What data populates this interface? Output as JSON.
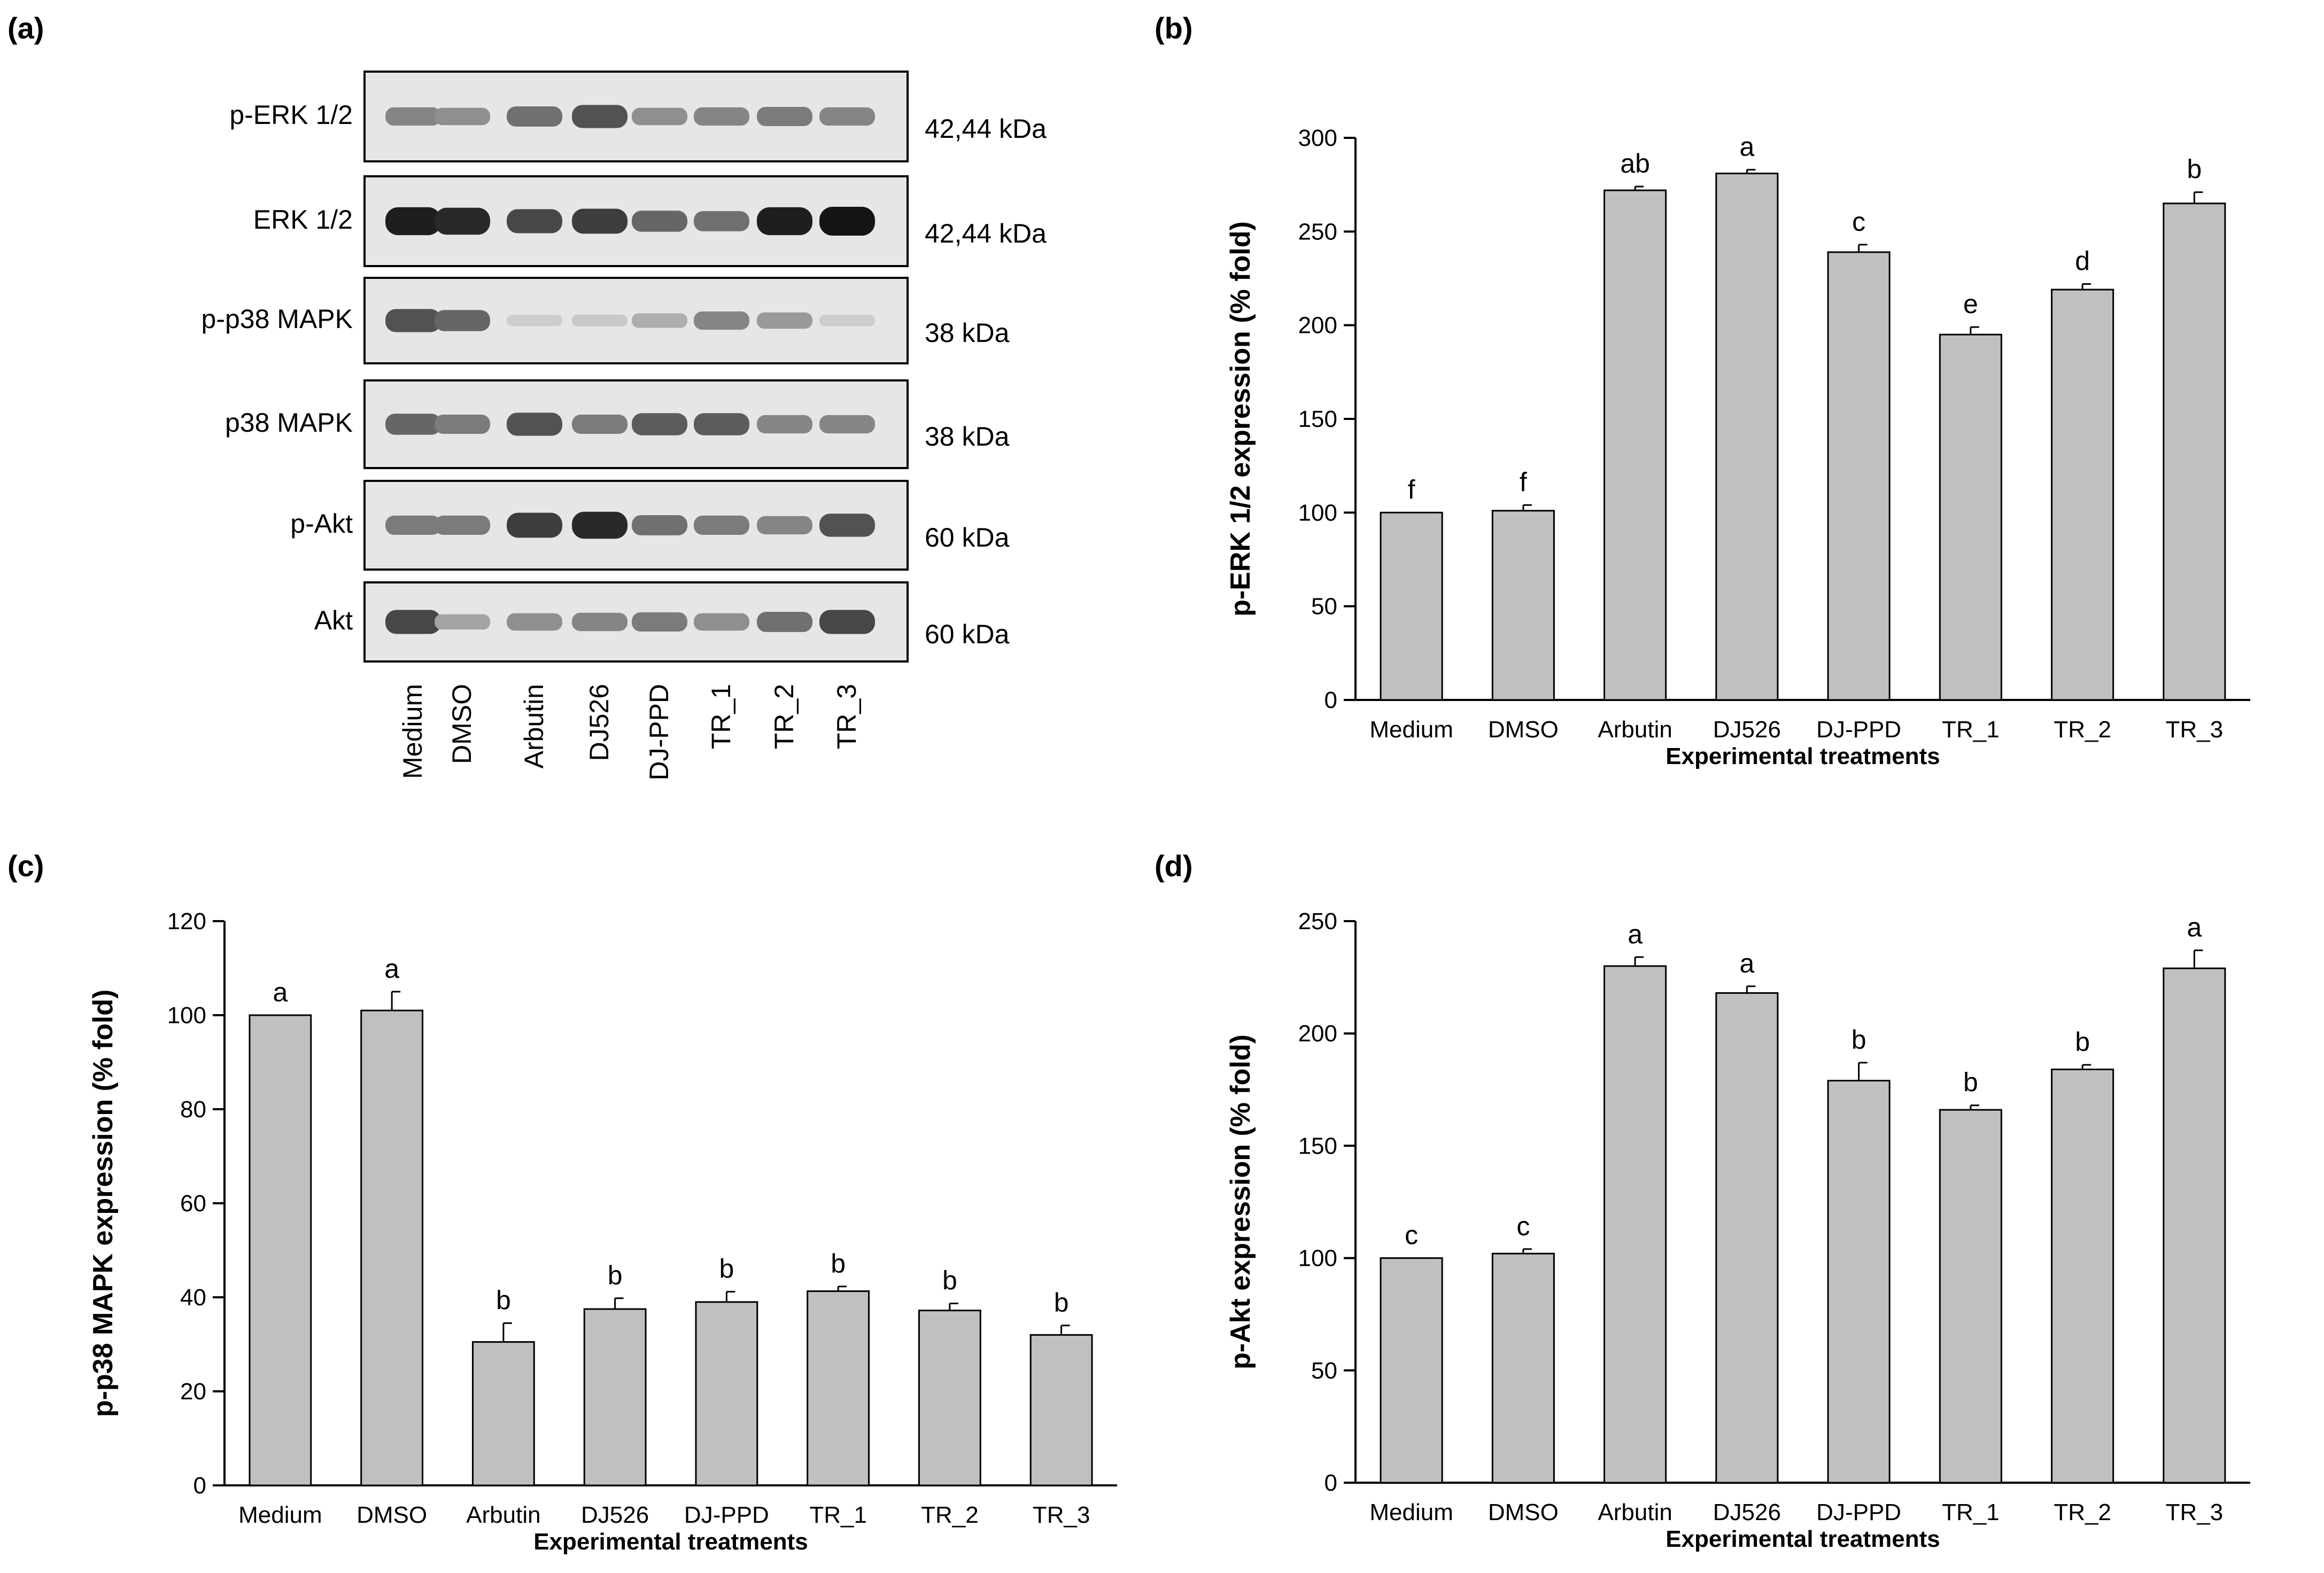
{
  "panels": [
    "(a)",
    "(b)",
    "(c)",
    "(d)"
  ],
  "blot": {
    "lanes": [
      "Medium",
      "DMSO",
      "Arbutin",
      "DJ526",
      "DJ-PPD",
      "TR_1",
      "TR_2",
      "TR_3"
    ],
    "rows": [
      {
        "name": "p-ERK 1/2",
        "size": "42,44 kDa",
        "intensity": [
          0.45,
          0.4,
          0.55,
          0.7,
          0.4,
          0.45,
          0.5,
          0.45
        ]
      },
      {
        "name": "ERK 1/2",
        "size": "42,44 kDa",
        "intensity": [
          0.95,
          0.9,
          0.75,
          0.8,
          0.6,
          0.55,
          0.95,
          1.0
        ]
      },
      {
        "name": "p-p38 MAPK",
        "size": "38 kDa",
        "intensity": [
          0.7,
          0.6,
          0.1,
          0.12,
          0.25,
          0.45,
          0.35,
          0.1
        ]
      },
      {
        "name": "p38 MAPK",
        "size": "38 kDa",
        "intensity": [
          0.6,
          0.5,
          0.7,
          0.5,
          0.65,
          0.65,
          0.45,
          0.45
        ]
      },
      {
        "name": "p-Akt",
        "size": "60 kDa",
        "intensity": [
          0.5,
          0.5,
          0.8,
          0.9,
          0.55,
          0.5,
          0.45,
          0.7
        ]
      },
      {
        "name": "Akt",
        "size": "60 kDa",
        "intensity": [
          0.75,
          0.3,
          0.4,
          0.45,
          0.5,
          0.4,
          0.55,
          0.75
        ]
      }
    ]
  },
  "chart_data": [
    {
      "panel": "(b)",
      "type": "bar",
      "categories": [
        "Medium",
        "DMSO",
        "Arbutin",
        "DJ526",
        "DJ-PPD",
        "TR_1",
        "TR_2",
        "TR_3"
      ],
      "values": [
        100,
        101,
        272,
        281,
        239,
        195,
        219,
        265
      ],
      "errors": [
        0,
        3,
        2,
        2,
        4,
        4,
        3,
        6
      ],
      "labels": [
        "f",
        "f",
        "ab",
        "a",
        "c",
        "e",
        "d",
        "b"
      ],
      "xlabel": "Experimental treatments",
      "ylabel": "p-ERK 1/2 expression (% fold)",
      "ylim": [
        0,
        300
      ],
      "yticks": [
        0,
        50,
        100,
        150,
        200,
        250,
        300
      ]
    },
    {
      "panel": "(c)",
      "type": "bar",
      "categories": [
        "Medium",
        "DMSO",
        "Arbutin",
        "DJ526",
        "DJ-PPD",
        "TR_1",
        "TR_2",
        "TR_3"
      ],
      "values": [
        100,
        101,
        30.5,
        37.5,
        39,
        41.3,
        37.2,
        32
      ],
      "errors": [
        0,
        4,
        4,
        2.3,
        2.2,
        1,
        1.5,
        2
      ],
      "labels": [
        "a",
        "a",
        "b",
        "b",
        "b",
        "b",
        "b",
        "b"
      ],
      "xlabel": "Experimental treatments",
      "ylabel": "p-p38 MAPK expression (% fold)",
      "ylim": [
        0,
        120
      ],
      "yticks": [
        0,
        20,
        40,
        60,
        80,
        100,
        120
      ]
    },
    {
      "panel": "(d)",
      "type": "bar",
      "categories": [
        "Medium",
        "DMSO",
        "Arbutin",
        "DJ526",
        "DJ-PPD",
        "TR_1",
        "TR_2",
        "TR_3"
      ],
      "values": [
        100,
        102,
        230,
        218,
        179,
        166,
        184,
        229
      ],
      "errors": [
        0,
        2,
        4,
        3,
        8,
        2,
        2,
        8
      ],
      "labels": [
        "c",
        "c",
        "a",
        "a",
        "b",
        "b",
        "b",
        "a"
      ],
      "xlabel": "Experimental treatments",
      "ylabel": "p-Akt expression (% fold)",
      "ylim": [
        0,
        250
      ],
      "yticks": [
        0,
        50,
        100,
        150,
        200,
        250
      ]
    }
  ],
  "colors": {
    "bar": "#c0c0c0",
    "axis": "#000000",
    "background": "#ffffff"
  }
}
